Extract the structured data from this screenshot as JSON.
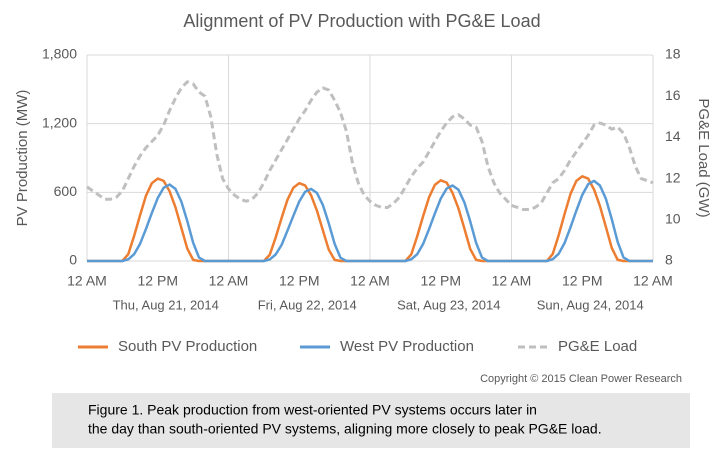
{
  "chart_data": {
    "type": "line",
    "title": "Alignment of PV Production with PG&E Load",
    "y_label": "PV Production (MW)",
    "y2_label": "PG&E Load (GW)",
    "xlim": [
      0,
      96
    ],
    "xticks": [
      {
        "value": 0,
        "label": "12 AM"
      },
      {
        "value": 12,
        "label": "12 PM"
      },
      {
        "value": 24,
        "label": "12 AM"
      },
      {
        "value": 36,
        "label": "12 PM"
      },
      {
        "value": 48,
        "label": "12 AM"
      },
      {
        "value": 60,
        "label": "12 PM"
      },
      {
        "value": 72,
        "label": "12 AM"
      },
      {
        "value": 84,
        "label": "12 PM"
      },
      {
        "value": 96,
        "label": "12 AM"
      }
    ],
    "xgrid": [
      0,
      24,
      48,
      72,
      96
    ],
    "day_labels": [
      "Thu, Aug 21, 2014",
      "Fri, Aug 22, 2014",
      "Sat, Aug 23, 2014",
      "Sun, Aug 24, 2014"
    ],
    "ylim": [
      0,
      1800
    ],
    "yticks": [
      0,
      600,
      {
        "value": 1200,
        "label": "1,200"
      },
      {
        "value": 1800,
        "label": "1,800"
      }
    ],
    "y2lim": [
      8,
      18
    ],
    "y2ticks": [
      8,
      10,
      12,
      14,
      16,
      18
    ],
    "grid": true,
    "legend": "bottom",
    "x": [
      0,
      1,
      2,
      3,
      4,
      5,
      6,
      7,
      8,
      9,
      10,
      11,
      12,
      13,
      14,
      15,
      16,
      17,
      18,
      19,
      20,
      21,
      22,
      23,
      24,
      25,
      26,
      27,
      28,
      29,
      30,
      31,
      32,
      33,
      34,
      35,
      36,
      37,
      38,
      39,
      40,
      41,
      42,
      43,
      44,
      45,
      46,
      47,
      48,
      49,
      50,
      51,
      52,
      53,
      54,
      55,
      56,
      57,
      58,
      59,
      60,
      61,
      62,
      63,
      64,
      65,
      66,
      67,
      68,
      69,
      70,
      71,
      72,
      73,
      74,
      75,
      76,
      77,
      78,
      79,
      80,
      81,
      82,
      83,
      84,
      85,
      86,
      87,
      88,
      89,
      90,
      91,
      92,
      93,
      94,
      95,
      96
    ],
    "series": [
      {
        "name": "South PV Production",
        "color": "#ed7d31",
        "dashed": false,
        "values": [
          0,
          0,
          0,
          0,
          0,
          0,
          0,
          60,
          220,
          400,
          570,
          680,
          720,
          700,
          610,
          470,
          290,
          110,
          10,
          0,
          0,
          0,
          0,
          0,
          0,
          0,
          0,
          0,
          0,
          0,
          0,
          55,
          205,
          375,
          535,
          640,
          680,
          660,
          575,
          440,
          270,
          100,
          10,
          0,
          0,
          0,
          0,
          0,
          0,
          0,
          0,
          0,
          0,
          0,
          0,
          58,
          215,
          390,
          555,
          665,
          705,
          685,
          595,
          460,
          285,
          105,
          10,
          0,
          0,
          0,
          0,
          0,
          0,
          0,
          0,
          0,
          0,
          0,
          0,
          62,
          225,
          410,
          585,
          700,
          740,
          720,
          625,
          480,
          300,
          115,
          10,
          0,
          0,
          0,
          0,
          0,
          0
        ]
      },
      {
        "name": "West PV Production",
        "color": "#5b9bd5",
        "dashed": false,
        "values": [
          0,
          0,
          0,
          0,
          0,
          0,
          0,
          15,
          60,
          150,
          280,
          420,
          550,
          640,
          668,
          630,
          520,
          350,
          160,
          30,
          0,
          0,
          0,
          0,
          0,
          0,
          0,
          0,
          0,
          0,
          0,
          14,
          57,
          140,
          265,
          395,
          520,
          605,
          630,
          595,
          490,
          330,
          150,
          28,
          0,
          0,
          0,
          0,
          0,
          0,
          0,
          0,
          0,
          0,
          0,
          15,
          59,
          148,
          277,
          415,
          545,
          633,
          660,
          623,
          513,
          346,
          158,
          30,
          0,
          0,
          0,
          0,
          0,
          0,
          0,
          0,
          0,
          0,
          0,
          16,
          63,
          157,
          293,
          440,
          577,
          671,
          700,
          660,
          545,
          367,
          168,
          31,
          0,
          0,
          0,
          0,
          0
        ]
      },
      {
        "name": "PG&E Load",
        "color": "#bfbfbf",
        "dashed": true,
        "axis": "y2",
        "values": [
          11.6,
          11.4,
          11.2,
          11.0,
          11.0,
          11.1,
          11.4,
          12.0,
          12.6,
          13.1,
          13.5,
          13.8,
          14.1,
          14.6,
          15.3,
          15.9,
          16.4,
          16.7,
          16.6,
          16.2,
          16.0,
          15.0,
          13.2,
          12.0,
          11.5,
          11.2,
          11.0,
          10.9,
          11.0,
          11.3,
          11.8,
          12.4,
          12.9,
          13.4,
          13.9,
          14.4,
          14.9,
          15.3,
          15.8,
          16.2,
          16.4,
          16.3,
          15.8,
          15.2,
          14.3,
          12.8,
          11.8,
          11.2,
          10.9,
          10.7,
          10.6,
          10.6,
          10.8,
          11.1,
          11.6,
          12.1,
          12.5,
          12.8,
          13.3,
          13.8,
          14.3,
          14.7,
          15.0,
          15.1,
          14.9,
          14.6,
          14.5,
          13.8,
          12.6,
          11.8,
          11.3,
          11.0,
          10.7,
          10.6,
          10.5,
          10.5,
          10.6,
          10.8,
          11.3,
          11.8,
          12.0,
          12.4,
          12.9,
          13.3,
          13.7,
          14.1,
          14.6,
          14.7,
          14.6,
          14.4,
          14.5,
          14.2,
          13.5,
          12.6,
          12.0,
          11.9,
          11.8
        ]
      }
    ],
    "copyright": "Copyright © 2015 Clean Power Research",
    "caption": [
      "Figure 1. Peak production from west-oriented PV systems occurs later in",
      "the day than south-oriented PV systems, aligning more closely to peak PG&E load."
    ]
  }
}
